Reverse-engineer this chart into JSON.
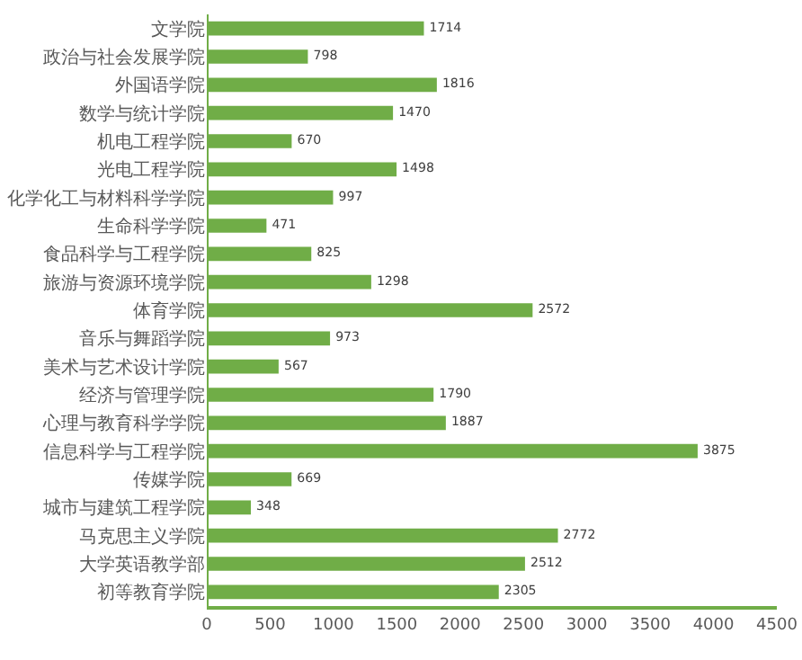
{
  "chart_data": {
    "type": "bar",
    "orientation": "horizontal",
    "categories": [
      "文学院",
      "政治与社会发展学院",
      "外国语学院",
      "数学与统计学院",
      "机电工程学院",
      "光电工程学院",
      "化学化工与材料科学学院",
      "生命科学学院",
      "食品科学与工程学院",
      "旅游与资源环境学院",
      "体育学院",
      "音乐与舞蹈学院",
      "美术与艺术设计学院",
      "经济与管理学院",
      "心理与教育科学学院",
      "信息科学与工程学院",
      "传媒学院",
      "城市与建筑工程学院",
      "马克思主义学院",
      "大学英语教学部",
      "初等教育学院"
    ],
    "values": [
      1714,
      798,
      1816,
      1470,
      670,
      1498,
      997,
      471,
      825,
      1298,
      2572,
      973,
      567,
      1790,
      1887,
      3875,
      669,
      348,
      2772,
      2512,
      2305
    ],
    "color": "#70ad47",
    "data_labels": true,
    "grid": false,
    "xlim": [
      0,
      4500
    ],
    "xticks": [
      0,
      500,
      1000,
      1500,
      2000,
      2500,
      3000,
      3500,
      4000,
      4500
    ]
  }
}
